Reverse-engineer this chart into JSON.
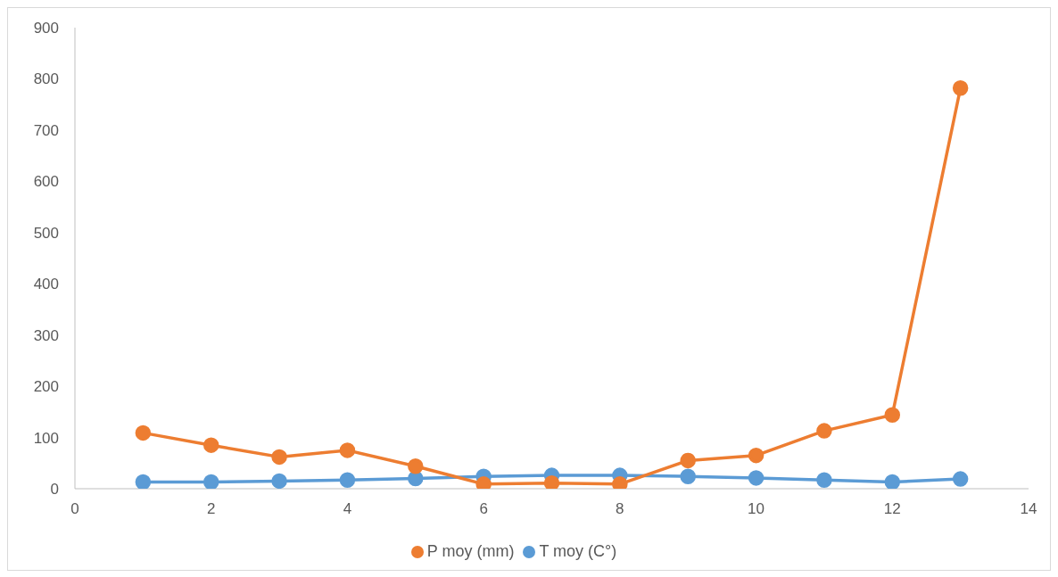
{
  "chart_data": {
    "type": "line",
    "x": [
      1,
      2,
      3,
      4,
      5,
      6,
      7,
      8,
      9,
      10,
      11,
      12,
      13
    ],
    "xlim": [
      0,
      14
    ],
    "xticks": [
      0,
      2,
      4,
      6,
      8,
      10,
      12,
      14
    ],
    "ylim": [
      0,
      900
    ],
    "yticks": [
      0,
      100,
      200,
      300,
      400,
      500,
      600,
      700,
      800,
      900
    ],
    "grid": false,
    "legend": "bottom",
    "marker": "circle",
    "line_style": "solid",
    "series": [
      {
        "name": "T moy (C°)",
        "color": "#5b9bd5",
        "values": [
          13,
          13,
          15,
          17,
          20,
          24,
          26,
          26,
          24,
          21,
          17,
          13,
          19
        ]
      },
      {
        "name": "P moy (mm)",
        "color": "#ed7d31",
        "values": [
          109,
          85,
          62,
          75,
          44,
          9,
          11,
          9,
          55,
          65,
          113,
          144,
          782
        ]
      }
    ]
  }
}
